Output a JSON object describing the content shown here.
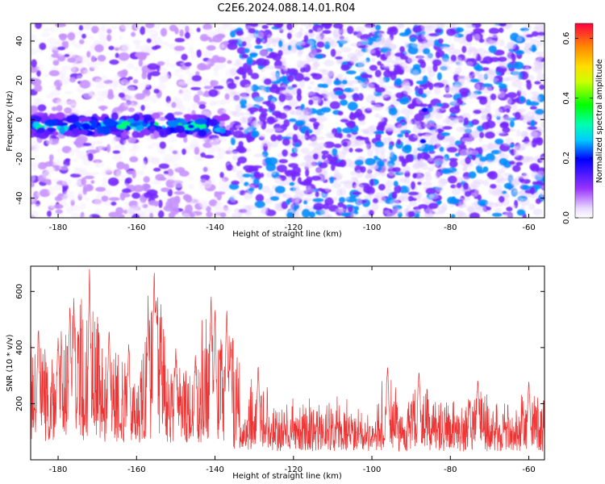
{
  "title": "C2E6.2024.088.14.01.R04",
  "colors": {
    "snr_line": "#ee3333",
    "spectrogram_base": "#7a3cf0",
    "axis": "#000000"
  },
  "chart_data": [
    {
      "type": "heatmap",
      "xlabel": "Height of straight line (km)",
      "ylabel": "Frequency (Hz)",
      "xlim": [
        -187,
        -56
      ],
      "ylim": [
        -50,
        49
      ],
      "xticks": [
        -180,
        -160,
        -140,
        -120,
        -100,
        -80,
        -60
      ],
      "yticks": [
        -40,
        -20,
        0,
        20,
        40
      ],
      "colorbar": {
        "label": "Normalized spectral amplitude",
        "range": [
          0.0,
          0.65
        ],
        "ticks": [
          0.0,
          0.2,
          0.4,
          0.6
        ],
        "colormap": "rainbow (white, purple, blue, cyan, green, yellow, orange, red)"
      },
      "features": [
        {
          "description": "strong band near 0 Hz",
          "x_range": [
            -187,
            -136
          ],
          "frequency_center": -3,
          "frequency_halfwidth": 5,
          "peak_amplitude": 0.4
        },
        {
          "description": "background noise (lighter)",
          "x_range": [
            -187,
            -136
          ],
          "mean_amplitude": 0.05
        },
        {
          "description": "background noise (denser)",
          "x_range": [
            -136,
            -56
          ],
          "mean_amplitude": 0.1
        },
        {
          "description": "isolated spots",
          "points": [
            [
              -86.5,
              5
            ],
            [
              -87,
              -11
            ]
          ],
          "amplitude": 0.2
        }
      ]
    },
    {
      "type": "line",
      "xlabel": "Height of straight line (km)",
      "ylabel": "SNR (10 * v/v)",
      "xlim": [
        -187,
        -56
      ],
      "ylim": [
        0,
        690
      ],
      "xticks": [
        -180,
        -160,
        -140,
        -120,
        -100,
        -80,
        -60
      ],
      "yticks": [
        200,
        400,
        600
      ],
      "series": [
        {
          "x_range": [
            -187,
            -56
          ],
          "baseline_segments": [
            {
              "x_range": [
                -187,
                -136
              ],
              "low": 60,
              "high": 320
            },
            {
              "x_range": [
                -136,
                -56
              ],
              "low": 30,
              "high": 230
            }
          ],
          "peaks": [
            {
              "x": -185,
              "y": 480
            },
            {
              "x": -180,
              "y": 440
            },
            {
              "x": -177,
              "y": 560
            },
            {
              "x": -176,
              "y": 580
            },
            {
              "x": -172,
              "y": 680
            },
            {
              "x": -167,
              "y": 470
            },
            {
              "x": -162,
              "y": 420
            },
            {
              "x": -157,
              "y": 500
            },
            {
              "x": -155.5,
              "y": 690
            },
            {
              "x": -155,
              "y": 580
            },
            {
              "x": -150,
              "y": 400
            },
            {
              "x": -145,
              "y": 380
            },
            {
              "x": -141,
              "y": 600
            },
            {
              "x": -140,
              "y": 540
            },
            {
              "x": -137,
              "y": 550
            },
            {
              "x": -136,
              "y": 430
            },
            {
              "x": -129,
              "y": 340
            },
            {
              "x": -96,
              "y": 340
            },
            {
              "x": -88,
              "y": 320
            },
            {
              "x": -73,
              "y": 290
            },
            {
              "x": -60,
              "y": 280
            }
          ]
        }
      ]
    }
  ]
}
